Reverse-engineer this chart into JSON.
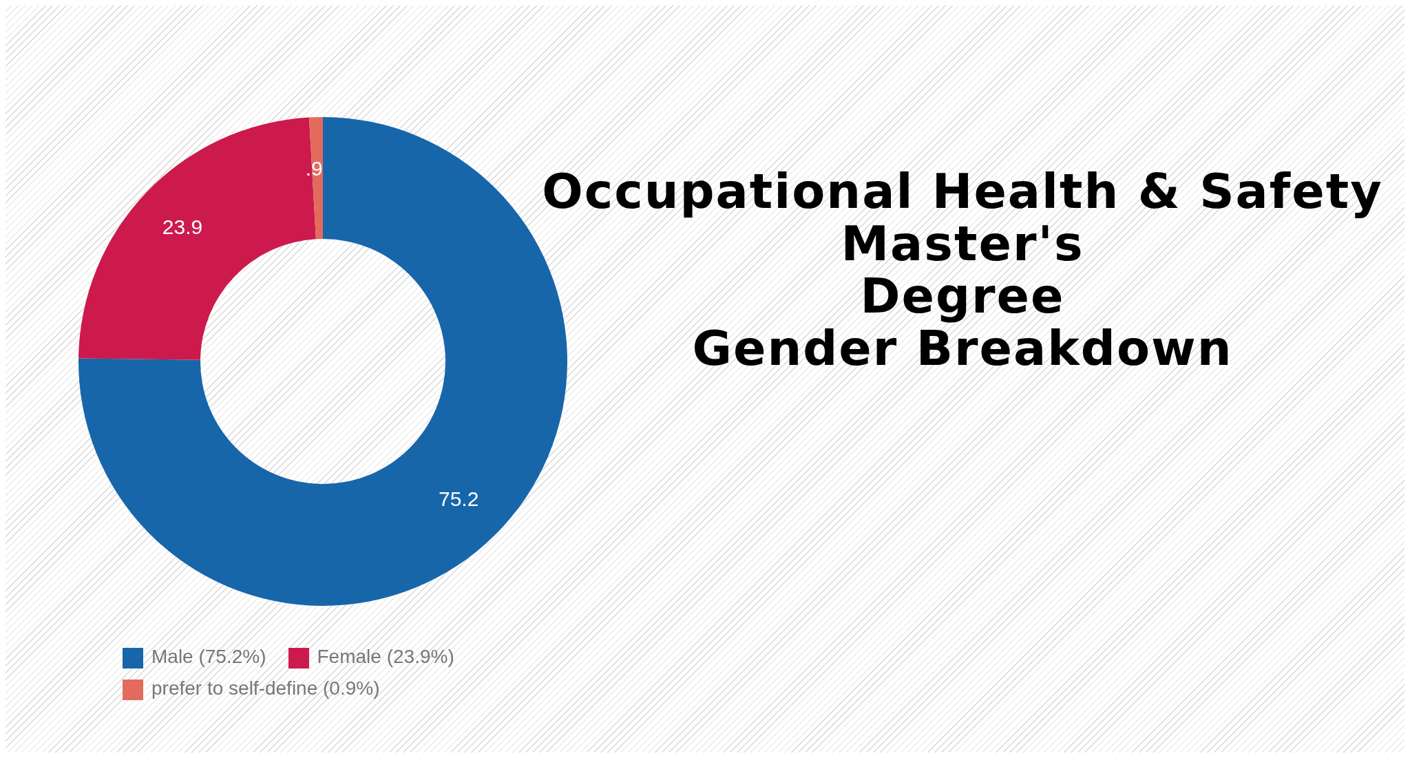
{
  "chart_data": {
    "type": "donut",
    "title": "Occupational Health & Safety\nMaster's\nDegree\nGender Breakdown",
    "categories": [
      "Male (75.2%)",
      "Female (23.9%)",
      "prefer to self-define (0.9%)"
    ],
    "values": [
      75.2,
      23.9,
      0.9
    ],
    "colors": [
      "#1766aa",
      "#cc1a4c",
      "#e36b5d"
    ],
    "value_labels": [
      "75.2",
      "23.9",
      ".9"
    ],
    "legend": "bottom left"
  }
}
